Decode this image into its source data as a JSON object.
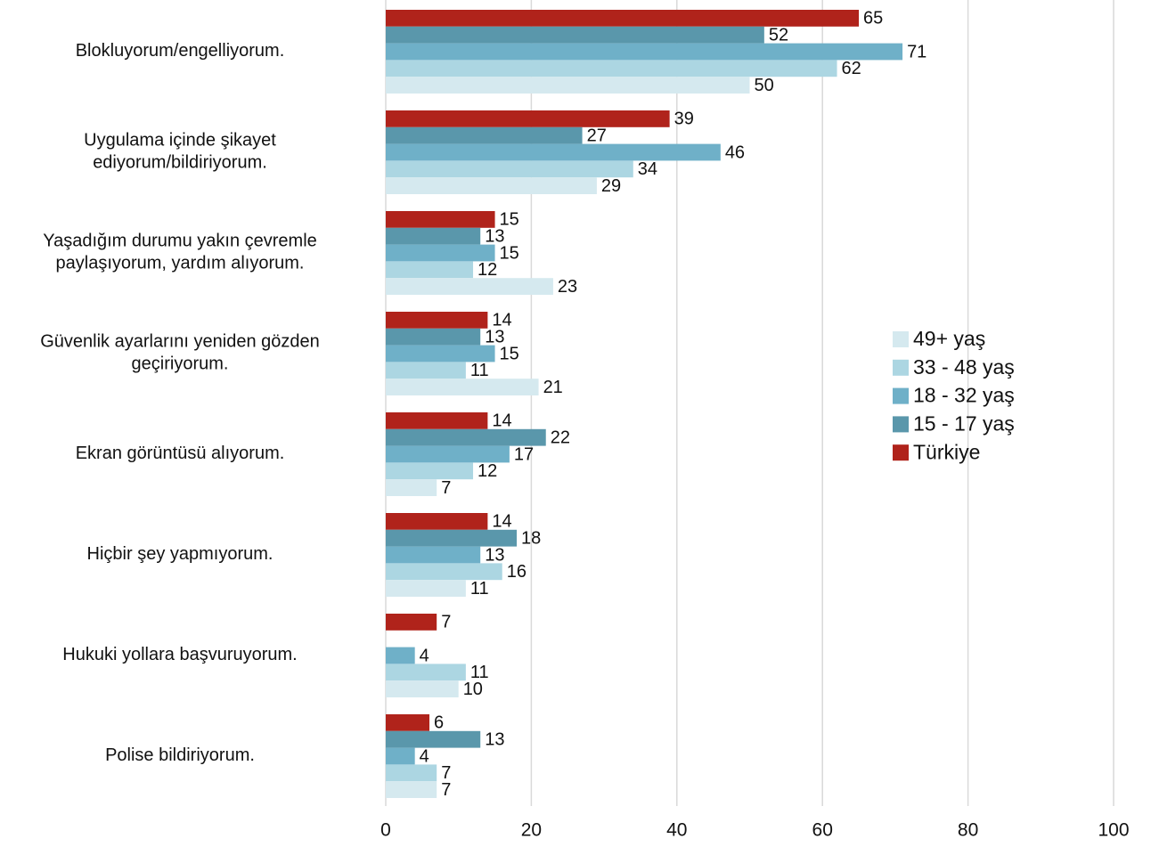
{
  "chart_data": {
    "type": "bar",
    "orientation": "horizontal",
    "categories": [
      "Blokluyorum/engelliyorum.",
      "Uygulama içinde şikayet\nediyorum/bildiriyorum.",
      "Yaşadığım durumu yakın çevremle\npaylaşıyorum, yardım alıyorum.",
      "Güvenlik ayarlarını yeniden gözden\ngeçiriyorum.",
      "Ekran görüntüsü alıyorum.",
      "Hiçbir şey yapmıyorum.",
      "Hukuki yollara başvuruyorum.",
      "Polise bildiriyorum."
    ],
    "series": [
      {
        "name": "Türkiye",
        "color": "#b0231b",
        "values": [
          65,
          39,
          15,
          14,
          14,
          14,
          7,
          6
        ]
      },
      {
        "name": "15 - 17 yaş",
        "color": "#5a97ab",
        "values": [
          52,
          27,
          13,
          13,
          22,
          18,
          null,
          13
        ]
      },
      {
        "name": "18 - 32 yaş",
        "color": "#6fb0c8",
        "values": [
          71,
          46,
          15,
          15,
          17,
          13,
          4,
          4
        ]
      },
      {
        "name": "33 - 48 yaş",
        "color": "#acd6e2",
        "values": [
          62,
          34,
          12,
          11,
          12,
          16,
          11,
          7
        ]
      },
      {
        "name": "49+ yaş",
        "color": "#d5e9ef",
        "values": [
          50,
          29,
          23,
          21,
          7,
          11,
          10,
          7
        ]
      }
    ],
    "xlim": [
      0,
      100
    ],
    "xticks": [
      0,
      20,
      40,
      60,
      80,
      100
    ],
    "grid": true,
    "legend": "right"
  }
}
